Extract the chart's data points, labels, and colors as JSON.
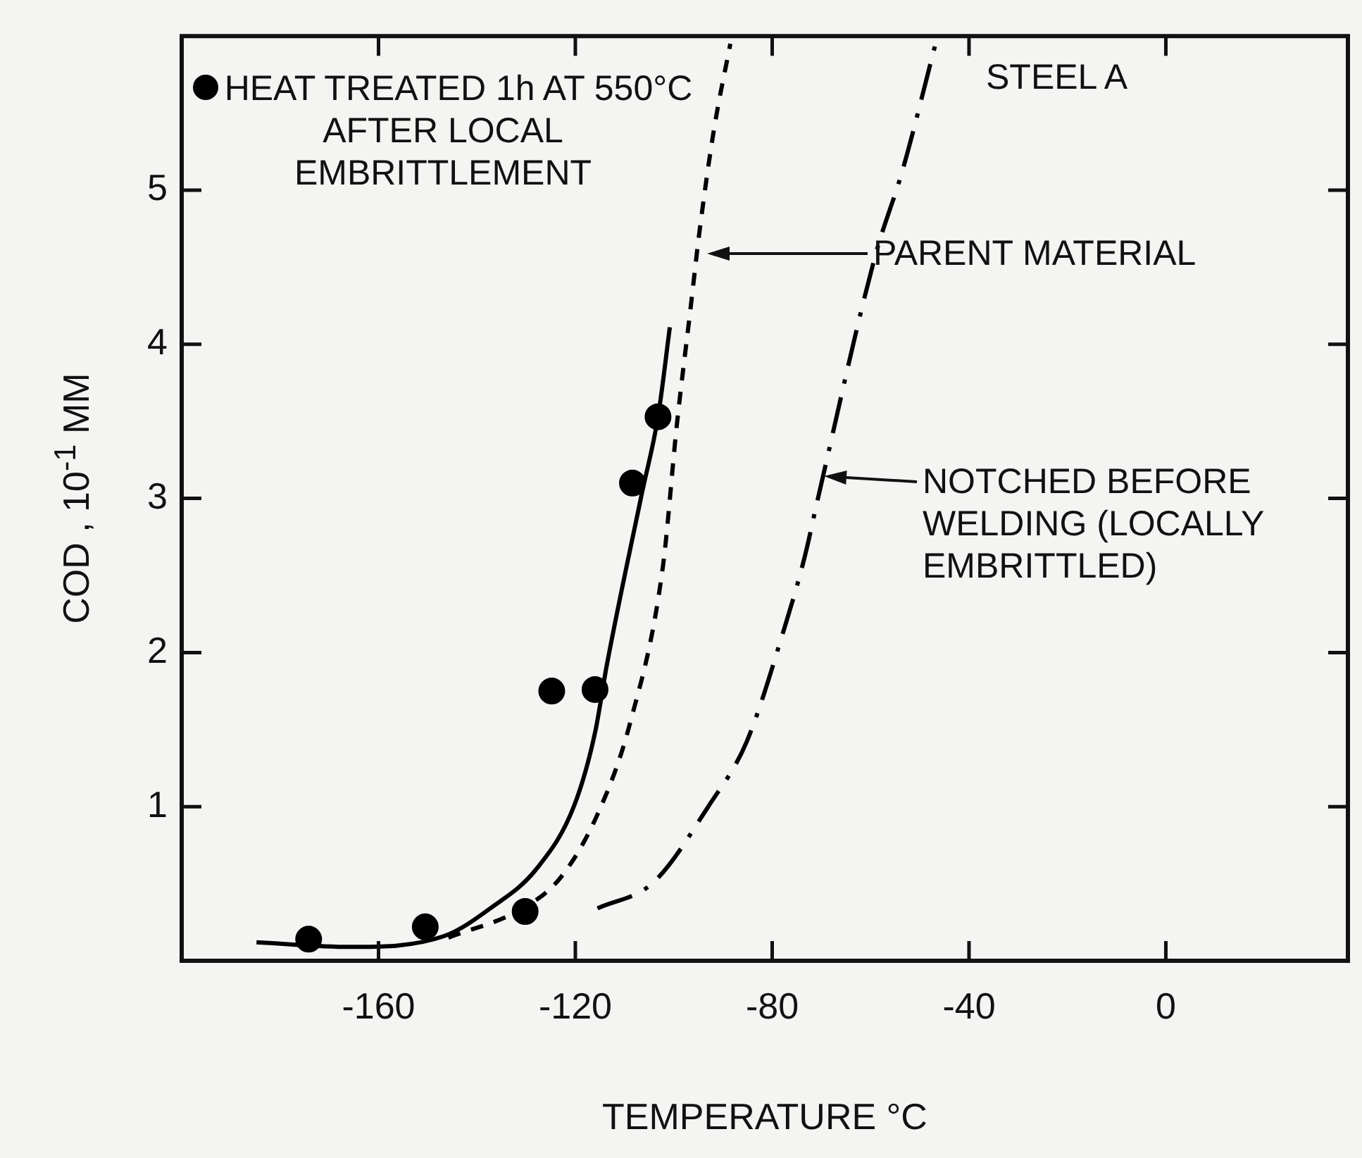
{
  "chart_data": {
    "type": "line",
    "xlabel": "TEMPERATURE °C",
    "ylabel": "COD , 10$^{-1}$ MM",
    "xlim": [
      -200,
      37
    ],
    "ylim": [
      0,
      6
    ],
    "xticks": [
      -160,
      -120,
      -80,
      -40,
      0
    ],
    "yticks": [
      1,
      2,
      3,
      4,
      5
    ],
    "legend": "top left",
    "series": [
      {
        "name": "HEAT TREATED 1h AT 550°C AFTER LOCAL EMBRITTLEMENT",
        "type": "scatter",
        "marker": "circle",
        "color": "#000000",
        "x": [
          -174.2,
          -150.5,
          -130.2,
          -124.8,
          -116,
          -108.4,
          -103.2
        ],
        "values": [
          0.14,
          0.22,
          0.32,
          1.75,
          1.76,
          3.1,
          3.53
        ]
      },
      {
        "type": "line",
        "marker": "none",
        "line_style": "solid",
        "color": "#000000",
        "x": [
          -184.8,
          -165.7,
          -146.7,
          -137.3,
          -127.8,
          -120.2,
          -116,
          -113.6,
          -106.5,
          -103.2,
          -100.8
        ],
        "values": [
          0.12,
          0.09,
          0.16,
          0.34,
          0.6,
          1.01,
          1.48,
          1.92,
          3.03,
          3.53,
          4.11
        ]
      },
      {
        "type": "line",
        "marker": "none",
        "line_style": "dashed",
        "color": "#000000",
        "x": [
          -145.8,
          -130.7,
          -123,
          -115.5,
          -108.9,
          -102.2,
          -99.4,
          -96.6,
          -94.7,
          -91.8,
          -88.5
        ],
        "values": [
          0.15,
          0.34,
          0.54,
          0.95,
          1.54,
          2.56,
          3.47,
          4.23,
          4.75,
          5.4,
          5.95
        ]
      },
      {
        "type": "line",
        "marker": "none",
        "line_style": "dashdot",
        "color": "#000000",
        "x": [
          -115.5,
          -104.1,
          -92.8,
          -85.2,
          -77.6,
          -73.4,
          -70.7,
          -59,
          -53.5,
          -46.8
        ],
        "values": [
          0.34,
          0.51,
          1.01,
          1.42,
          2.15,
          2.62,
          3.0,
          4.58,
          5.13,
          5.95
        ]
      }
    ],
    "annotations": [
      "STEEL A",
      "PARENT MATERIAL",
      "NOTCHED BEFORE WELDING (LOCALLY EMBRITTLED)"
    ]
  }
}
